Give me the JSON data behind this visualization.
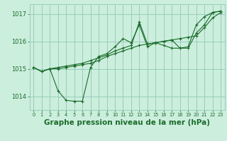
{
  "bg_color": "#cceedd",
  "grid_color": "#99ccbb",
  "line_color": "#1a6b2a",
  "marker_color": "#1a6b2a",
  "xlabel": "Graphe pression niveau de la mer (hPa)",
  "xlabel_fontsize": 7.5,
  "xlim": [
    -0.5,
    23.5
  ],
  "ylim": [
    1013.5,
    1017.35
  ],
  "yticks": [
    1014,
    1015,
    1016,
    1017
  ],
  "xticks": [
    0,
    1,
    2,
    3,
    4,
    5,
    6,
    7,
    8,
    9,
    10,
    11,
    12,
    13,
    14,
    15,
    16,
    17,
    18,
    19,
    20,
    21,
    22,
    23
  ],
  "series": [
    [
      1015.05,
      1014.9,
      1015.0,
      1014.2,
      1013.85,
      1013.82,
      1013.82,
      1015.05,
      1015.45,
      1015.55,
      1015.8,
      1016.1,
      1015.95,
      1016.6,
      1015.8,
      1015.95,
      1015.85,
      1015.75,
      1015.75,
      1015.8,
      1016.6,
      1016.9,
      1017.05,
      1017.1
    ],
    [
      1015.05,
      1014.9,
      1015.0,
      1015.0,
      1015.05,
      1015.1,
      1015.15,
      1015.2,
      1015.3,
      1015.45,
      1015.55,
      1015.65,
      1015.75,
      1015.85,
      1015.9,
      1015.95,
      1016.0,
      1016.05,
      1016.1,
      1016.15,
      1016.2,
      1016.5,
      1016.85,
      1017.05
    ],
    [
      1015.05,
      1014.9,
      1015.0,
      1015.05,
      1015.1,
      1015.15,
      1015.2,
      1015.3,
      1015.4,
      1015.5,
      1015.65,
      1015.75,
      1015.85,
      1016.7,
      1015.9,
      1015.95,
      1016.0,
      1016.05,
      1015.75,
      1015.75,
      1016.3,
      1016.6,
      1017.05,
      1017.1
    ]
  ]
}
